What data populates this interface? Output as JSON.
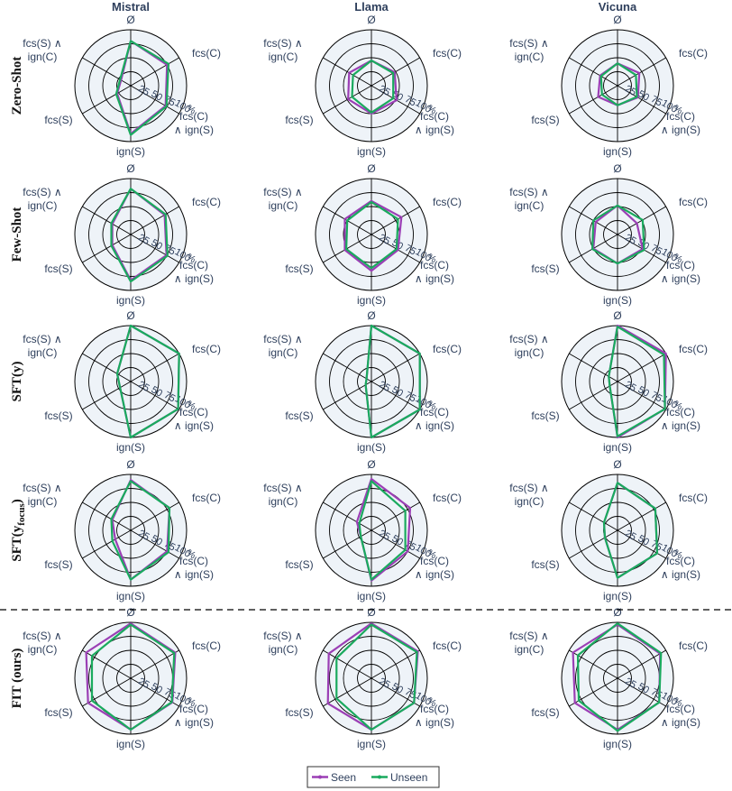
{
  "columns": [
    "Mistral",
    "Llama",
    "Vicuna"
  ],
  "rows": [
    "Zero-Shot",
    "Few-Shot",
    "SFT(y)",
    "SFT(y_focus)",
    "FIT (ours)"
  ],
  "row_label_parts": {
    "sft_focus_main": "SFT(y",
    "sft_focus_sub": "focus",
    "sft_focus_close": ")"
  },
  "axis_labels": {
    "top": "Ø",
    "upper_right": "fcs(C)",
    "lower_right_1": "fcs(C)",
    "lower_right_2": "∧ ign(S)",
    "bottom": "ign(S)",
    "lower_left": "fcs(S)",
    "upper_left_1": "fcs(S) ∧",
    "upper_left_2": "ign(C)"
  },
  "radial_ticks": [
    "25",
    "50",
    "75",
    "100",
    "%"
  ],
  "legend": {
    "seen": "Seen",
    "unseen": "Unseen"
  },
  "colors": {
    "seen": "#9b3fb5",
    "unseen": "#1aaa5e",
    "grid": "#000000",
    "fill": "#eef3f8"
  },
  "chart_data": {
    "type": "radar",
    "axes": [
      "Ø",
      "fcs(C)",
      "fcs(C) ∧ ign(S)",
      "ign(S)",
      "fcs(S)",
      "fcs(S) ∧ ign(C)"
    ],
    "rlim": [
      0,
      100
    ],
    "unit": "%",
    "legend_position": "bottom-center",
    "panels": [
      {
        "row": "Zero-Shot",
        "model": "Mistral",
        "series": [
          {
            "name": "Seen",
            "values": [
              80,
              75,
              72,
              86,
              28,
              20
            ]
          },
          {
            "name": "Unseen",
            "values": [
              80,
              78,
              74,
              88,
              30,
              22
            ]
          }
        ]
      },
      {
        "row": "Zero-Shot",
        "model": "Llama",
        "series": [
          {
            "name": "Seen",
            "values": [
              45,
              48,
              52,
              50,
              48,
              46
            ]
          },
          {
            "name": "Unseen",
            "values": [
              45,
              45,
              45,
              48,
              40,
              38
            ]
          }
        ]
      },
      {
        "row": "Zero-Shot",
        "model": "Vicuna",
        "series": [
          {
            "name": "Seen",
            "values": [
              40,
              45,
              42,
              35,
              40,
              36
            ]
          },
          {
            "name": "Unseen",
            "values": [
              40,
              38,
              40,
              35,
              32,
              34
            ]
          }
        ]
      },
      {
        "row": "Few-Shot",
        "model": "Mistral",
        "series": [
          {
            "name": "Seen",
            "values": [
              82,
              70,
              74,
              82,
              38,
              38
            ]
          },
          {
            "name": "Unseen",
            "values": [
              82,
              72,
              76,
              84,
              40,
              40
            ]
          }
        ]
      },
      {
        "row": "Few-Shot",
        "model": "Llama",
        "series": [
          {
            "name": "Seen",
            "values": [
              60,
              62,
              55,
              65,
              55,
              55
            ]
          },
          {
            "name": "Unseen",
            "values": [
              58,
              55,
              52,
              60,
              52,
              50
            ]
          }
        ]
      },
      {
        "row": "Few-Shot",
        "model": "Vicuna",
        "series": [
          {
            "name": "Seen",
            "values": [
              52,
              40,
              52,
              52,
              50,
              45
            ]
          },
          {
            "name": "Unseen",
            "values": [
              52,
              52,
              55,
              52,
              52,
              50
            ]
          }
        ]
      },
      {
        "row": "SFT(y)",
        "model": "Mistral",
        "series": [
          {
            "name": "Seen",
            "values": [
              100,
              100,
              98,
              100,
              22,
              28
            ]
          },
          {
            "name": "Unseen",
            "values": [
              100,
              100,
              98,
              100,
              22,
              28
            ]
          }
        ]
      },
      {
        "row": "SFT(y)",
        "model": "Llama",
        "series": [
          {
            "name": "Seen",
            "values": [
              100,
              100,
              100,
              100,
              12,
              10
            ]
          },
          {
            "name": "Unseen",
            "values": [
              100,
              100,
              100,
              100,
              12,
              10
            ]
          }
        ]
      },
      {
        "row": "SFT(y)",
        "model": "Vicuna",
        "series": [
          {
            "name": "Seen",
            "values": [
              100,
              100,
              98,
              100,
              16,
              18
            ]
          },
          {
            "name": "Unseen",
            "values": [
              98,
              96,
              98,
              98,
              16,
              18
            ]
          }
        ]
      },
      {
        "row": "SFT(y_focus)",
        "model": "Mistral",
        "series": [
          {
            "name": "Seen",
            "values": [
              90,
              80,
              75,
              88,
              32,
              38
            ]
          },
          {
            "name": "Unseen",
            "values": [
              88,
              80,
              78,
              88,
              38,
              40
            ]
          }
        ]
      },
      {
        "row": "SFT(y_focus)",
        "model": "Llama",
        "series": [
          {
            "name": "Seen",
            "values": [
              92,
              80,
              75,
              90,
              22,
              30
            ]
          },
          {
            "name": "Unseen",
            "values": [
              88,
              70,
              70,
              88,
              22,
              25
            ]
          }
        ]
      },
      {
        "row": "SFT(y_focus)",
        "model": "Vicuna",
        "series": [
          {
            "name": "Seen",
            "values": [
              85,
              78,
              82,
              85,
              26,
              28
            ]
          },
          {
            "name": "Unseen",
            "values": [
              85,
              78,
              82,
              85,
              26,
              28
            ]
          }
        ]
      },
      {
        "row": "FIT (ours)",
        "model": "Mistral",
        "series": [
          {
            "name": "Seen",
            "values": [
              98,
              92,
              86,
              92,
              88,
              92
            ]
          },
          {
            "name": "Unseen",
            "values": [
              96,
              90,
              85,
              92,
              80,
              80
            ]
          }
        ]
      },
      {
        "row": "FIT (ours)",
        "model": "Llama",
        "series": [
          {
            "name": "Seen",
            "values": [
              98,
              96,
              88,
              92,
              90,
              88
            ]
          },
          {
            "name": "Unseen",
            "values": [
              96,
              94,
              88,
              92,
              72,
              72
            ]
          }
        ]
      },
      {
        "row": "FIT (ours)",
        "model": "Vicuna",
        "series": [
          {
            "name": "Seen",
            "values": [
              96,
              88,
              86,
              92,
              88,
              92
            ]
          },
          {
            "name": "Unseen",
            "values": [
              98,
              90,
              86,
              94,
              80,
              82
            ]
          }
        ]
      }
    ]
  }
}
